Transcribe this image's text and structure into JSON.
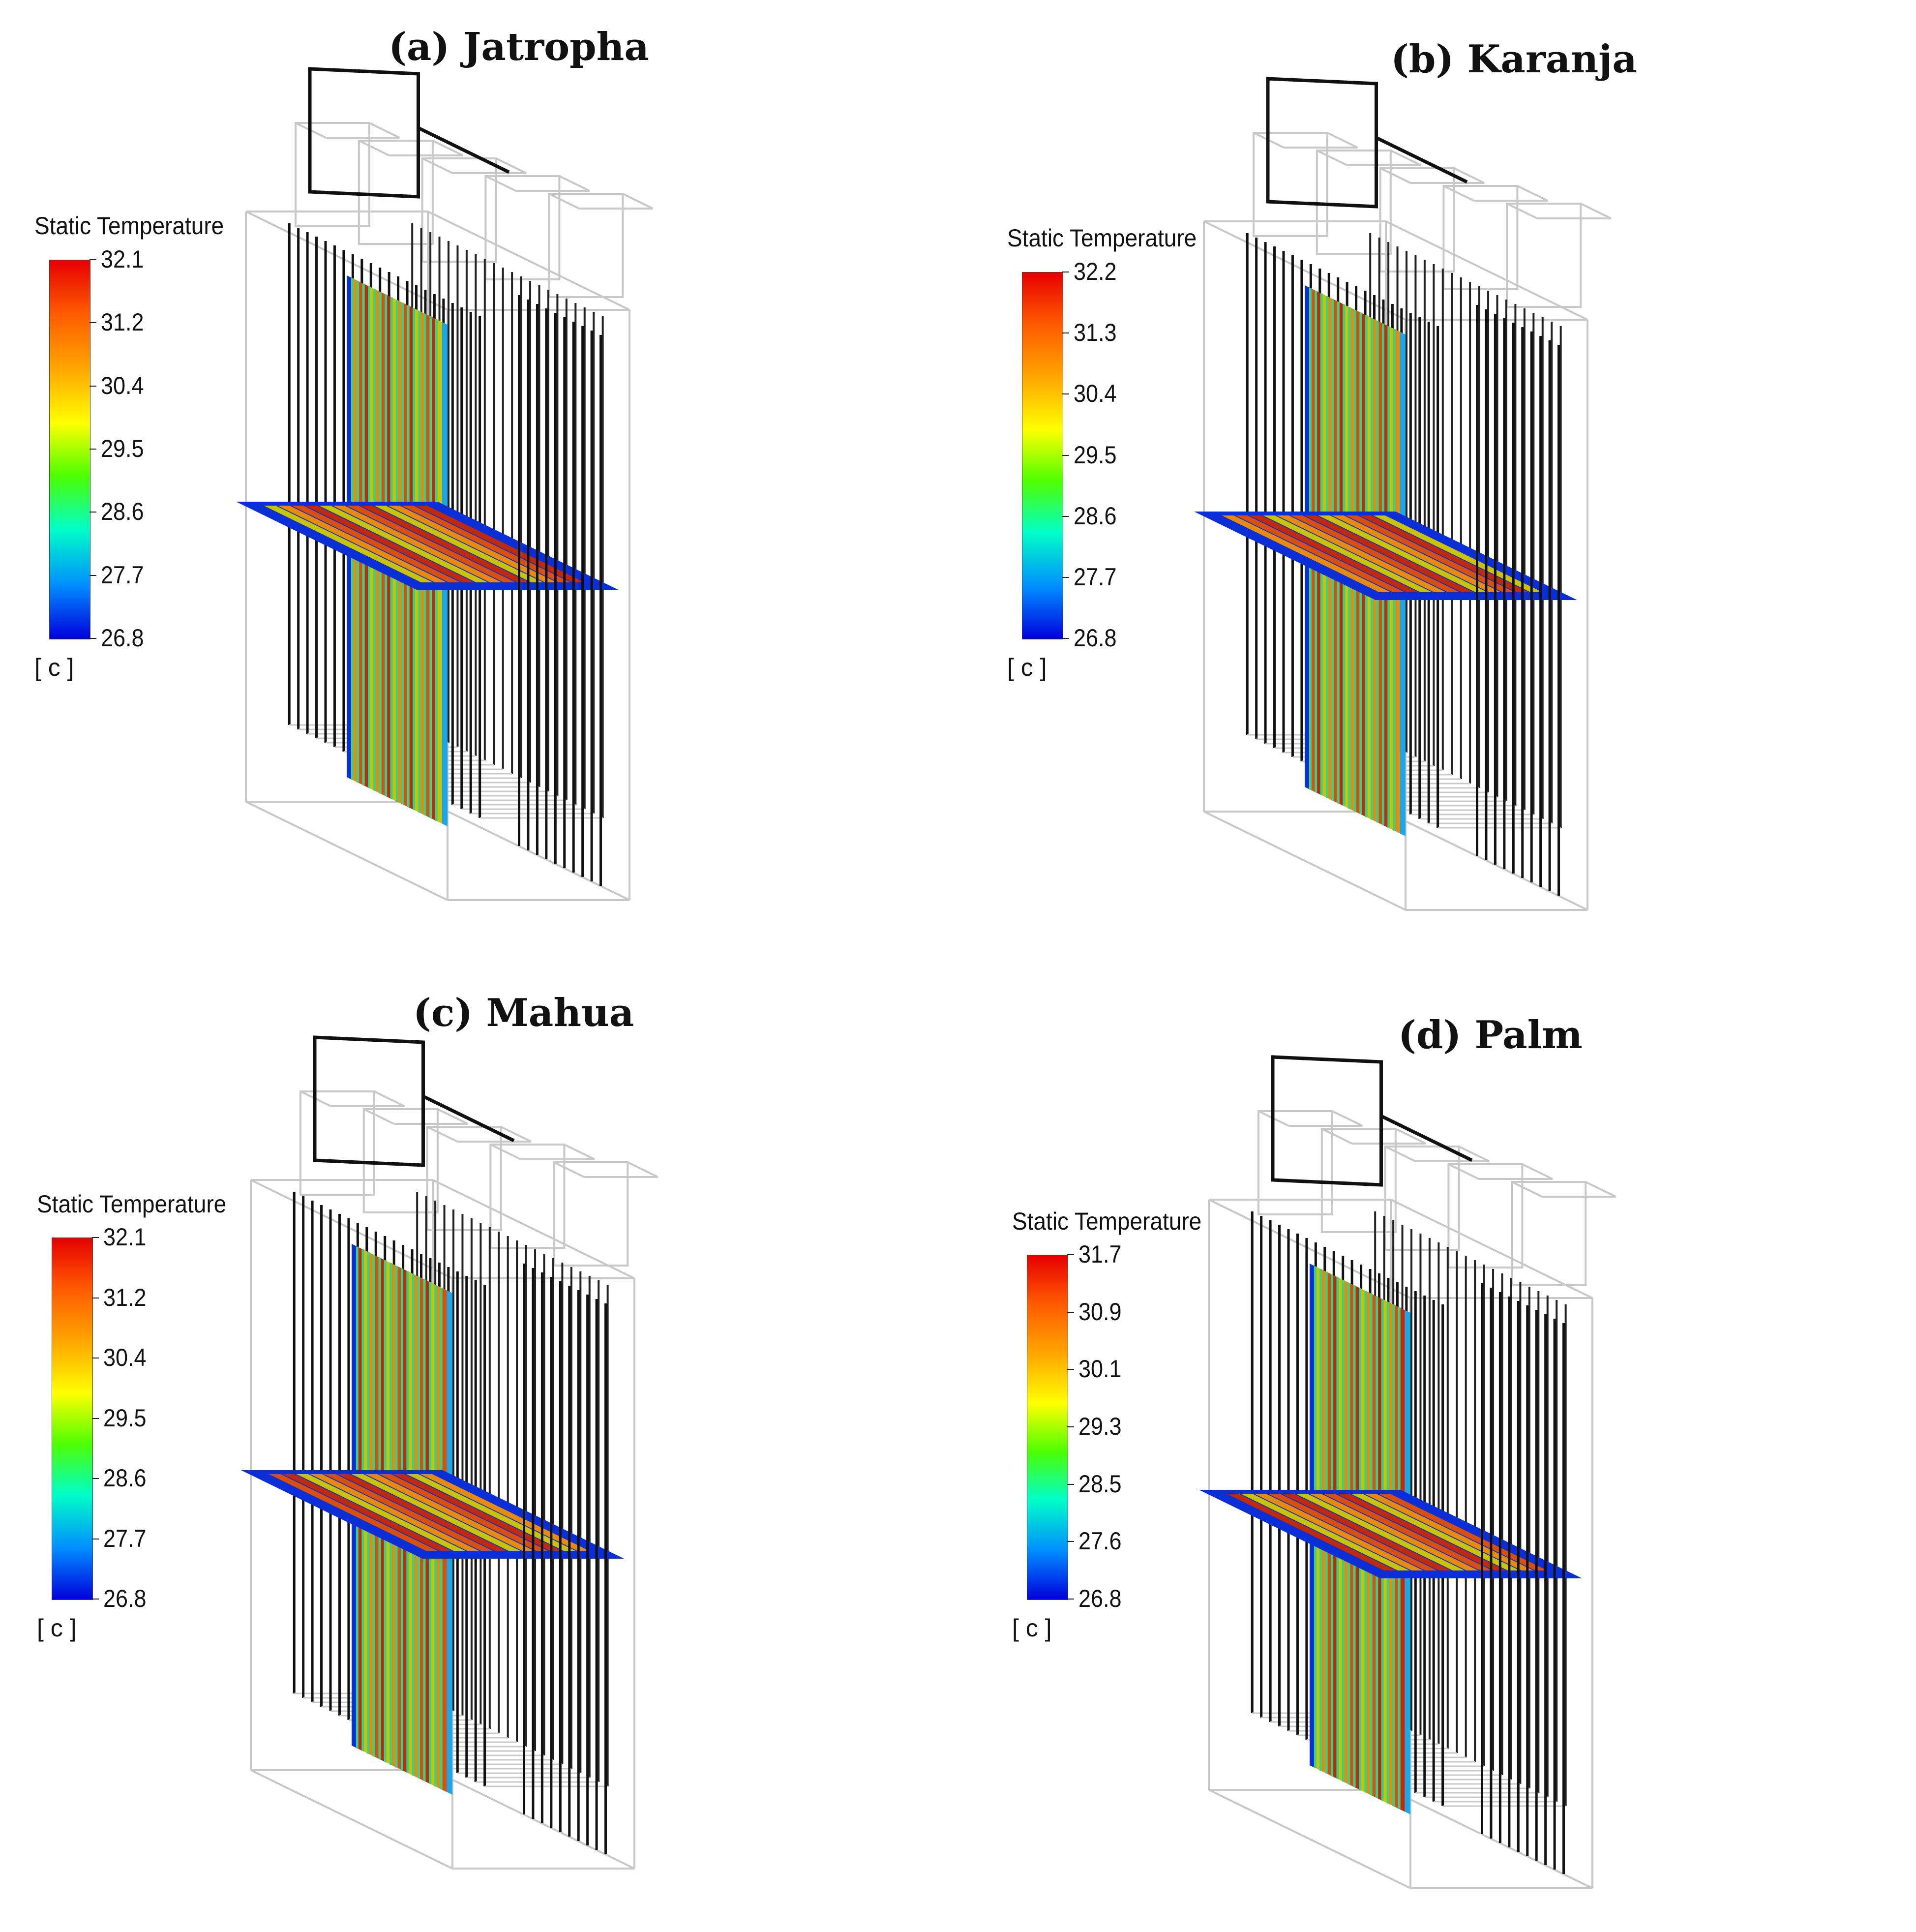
{
  "panels": [
    {
      "title": "(a) Jatropha",
      "legend": {
        "title": "Static Temperature",
        "ticks": [
          "32.1",
          "31.2",
          "30.4",
          "29.5",
          "28.6",
          "27.7",
          "26.8"
        ],
        "unit": "[ c ]"
      }
    },
    {
      "title": "(b) Karanja",
      "legend": {
        "title": "Static Temperature",
        "ticks": [
          "32.2",
          "31.3",
          "30.4",
          "29.5",
          "28.6",
          "27.7",
          "26.8"
        ],
        "unit": "[ c ]"
      }
    },
    {
      "title": "(c) Mahua",
      "legend": {
        "title": "Static Temperature",
        "ticks": [
          "32.1",
          "31.2",
          "30.4",
          "29.5",
          "28.6",
          "27.7",
          "26.8"
        ],
        "unit": "[ c ]"
      }
    },
    {
      "title": "(d) Palm",
      "legend": {
        "title": "Static Temperature",
        "ticks": [
          "31.7",
          "30.9",
          "30.1",
          "29.3",
          "28.5",
          "27.6",
          "26.8"
        ],
        "unit": "[ c ]"
      }
    }
  ],
  "colormap": {
    "max_color": "#e60000",
    "mid_color": "#ffff00",
    "min_color": "#0000dc"
  }
}
